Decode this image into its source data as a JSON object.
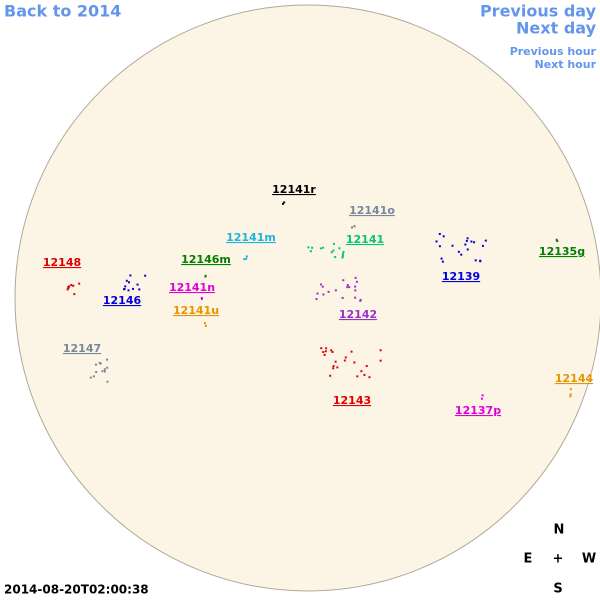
{
  "nav": {
    "back": "Back to 2014",
    "previous_day": "Previous day",
    "next_day": "Next day",
    "previous_hour": "Previous hour",
    "next_hour": "Next hour"
  },
  "regions": [
    {
      "label": "12141r",
      "color": "#000000"
    },
    {
      "label": "12141o",
      "color": "#778899"
    },
    {
      "label": "12141m",
      "color": "#1eb4dc"
    },
    {
      "label": "12141",
      "color": "#00c86e"
    },
    {
      "label": "12135g",
      "color": "#008000"
    },
    {
      "label": "12148",
      "color": "#e00000"
    },
    {
      "label": "12146m",
      "color": "#008000"
    },
    {
      "label": "12139",
      "color": "#0000dd"
    },
    {
      "label": "12141n",
      "color": "#e000e0"
    },
    {
      "label": "12146",
      "color": "#0000dd"
    },
    {
      "label": "12141u",
      "color": "#e69500"
    },
    {
      "label": "12142",
      "color": "#9932cc"
    },
    {
      "label": "12147",
      "color": "#778899"
    },
    {
      "label": "12144",
      "color": "#e69500"
    },
    {
      "label": "12143",
      "color": "#e00000"
    },
    {
      "label": "12137p",
      "color": "#e000e0"
    }
  ],
  "timestamp": "2014-08-20T02:00:38",
  "compass": {
    "north": "N",
    "east": "E",
    "center": "+",
    "west": "W",
    "south": "S"
  }
}
